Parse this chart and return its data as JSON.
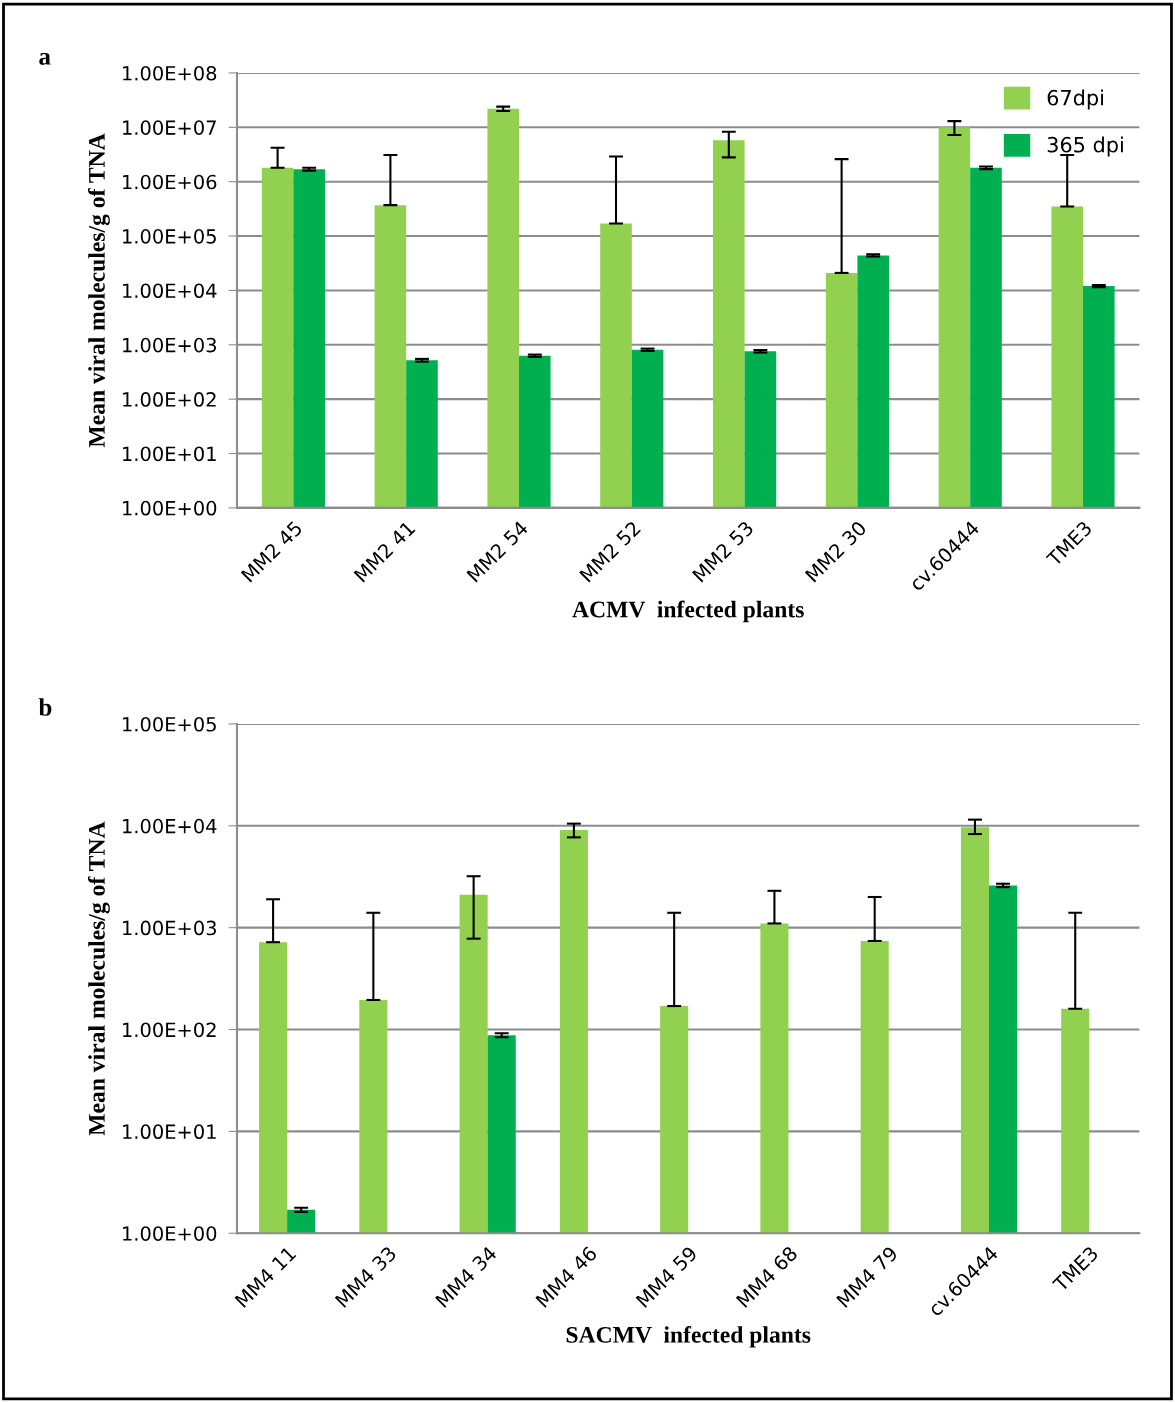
{
  "chart_data": [
    {
      "type": "bar",
      "title": "a",
      "xlabel": "ACMV  infected plants",
      "ylabel": "Mean viral molecules/g of TNA",
      "log": "y",
      "grid": "y",
      "legend": "top right",
      "categories": [
        "MM2 45",
        "MM2 41",
        "MM2 54",
        "MM2 52",
        "MM2 53",
        "MM2 30",
        "cv.60444",
        "TME3"
      ],
      "ylim": [
        1,
        100000000
      ],
      "yticks": [
        {
          "value": 1,
          "label": "1.00E+00"
        },
        {
          "value": 10,
          "label": "1.00E+01"
        },
        {
          "value": 100,
          "label": "1.00E+02"
        },
        {
          "value": 1000,
          "label": "1.00E+03"
        },
        {
          "value": 10000,
          "label": "1.00E+04"
        },
        {
          "value": 100000,
          "label": "1.00E+05"
        },
        {
          "value": 1000000,
          "label": "1.00E+06"
        },
        {
          "value": 10000000,
          "label": "1.00E+07"
        },
        {
          "value": 100000000,
          "label": "1.00E+08"
        }
      ],
      "series": [
        {
          "name": "67dpi",
          "color": "#92d050",
          "values": [
            1800000,
            370000,
            22000000,
            170000,
            5800000,
            21000,
            10000000,
            350000
          ],
          "errors": [
            [
              1800000,
              4200000
            ],
            [
              370000,
              3100000
            ],
            [
              20000000,
              24000000
            ],
            [
              170000,
              2900000
            ],
            [
              2800000,
              8300000
            ],
            [
              21000,
              2600000
            ],
            [
              7200000,
              13000000
            ],
            [
              350000,
              3100000
            ]
          ]
        },
        {
          "name": "365 dpi",
          "color": "#00b050",
          "values": [
            1700000,
            520,
            630,
            810,
            760,
            44000,
            1800000,
            12000
          ],
          "errors": [
            [
              1600000,
              1800000
            ],
            [
              490,
              550
            ],
            [
              600,
              660
            ],
            [
              770,
              850
            ],
            [
              720,
              800
            ],
            [
              42000,
              46000
            ],
            [
              1700000,
              1900000
            ],
            [
              11500,
              12500
            ]
          ]
        }
      ]
    },
    {
      "type": "bar",
      "title": "b",
      "xlabel": "SACMV  infected plants",
      "ylabel": "Mean viral molecules/g of TNA",
      "log": "y",
      "grid": "y",
      "categories": [
        "MM4 11",
        "MM4 33",
        "MM4 34",
        "MM4 46",
        "MM4 59",
        "MM4 68",
        "MM4 79",
        "cv.60444",
        "TME3"
      ],
      "ylim": [
        1,
        100000
      ],
      "yticks": [
        {
          "value": 1,
          "label": "1.00E+00"
        },
        {
          "value": 10,
          "label": "1.00E+01"
        },
        {
          "value": 100,
          "label": "1.00E+02"
        },
        {
          "value": 1000,
          "label": "1.00E+03"
        },
        {
          "value": 10000,
          "label": "1.00E+04"
        },
        {
          "value": 100000,
          "label": "1.00E+05"
        }
      ],
      "series": [
        {
          "color": "#92d050",
          "values": [
            720,
            195,
            2100,
            9100,
            170,
            1100,
            740,
            9700,
            160
          ],
          "errors": [
            [
              720,
              1900
            ],
            [
              195,
              1400
            ],
            [
              780,
              3200
            ],
            [
              7700,
              10500
            ],
            [
              170,
              1400
            ],
            [
              1100,
              2300
            ],
            [
              740,
              2000
            ],
            [
              8300,
              11500
            ],
            [
              160,
              1400
            ]
          ]
        },
        {
          "color": "#00b050",
          "values": [
            1.7,
            null,
            88,
            null,
            null,
            null,
            null,
            2600,
            null
          ],
          "errors": [
            [
              1.62,
              1.78
            ],
            null,
            [
              84,
              92
            ],
            null,
            null,
            null,
            null,
            [
              2500,
              2700
            ],
            null
          ]
        }
      ]
    }
  ]
}
